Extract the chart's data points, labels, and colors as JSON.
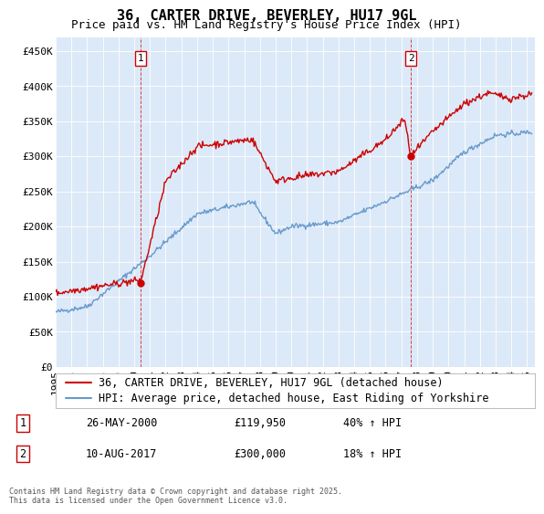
{
  "title": "36, CARTER DRIVE, BEVERLEY, HU17 9GL",
  "subtitle": "Price paid vs. HM Land Registry's House Price Index (HPI)",
  "ylabel_ticks": [
    "£0",
    "£50K",
    "£100K",
    "£150K",
    "£200K",
    "£250K",
    "£300K",
    "£350K",
    "£400K",
    "£450K"
  ],
  "ytick_values": [
    0,
    50000,
    100000,
    150000,
    200000,
    250000,
    300000,
    350000,
    400000,
    450000
  ],
  "ylim": [
    0,
    470000
  ],
  "xlim_start": 1995.0,
  "xlim_end": 2025.5,
  "xtick_years": [
    1995,
    1996,
    1997,
    1998,
    1999,
    2000,
    2001,
    2002,
    2003,
    2004,
    2005,
    2006,
    2007,
    2008,
    2009,
    2010,
    2011,
    2012,
    2013,
    2014,
    2015,
    2016,
    2017,
    2018,
    2019,
    2020,
    2021,
    2022,
    2023,
    2024,
    2025
  ],
  "background_color": "#dce9f8",
  "fig_bg_color": "#ffffff",
  "red_line_color": "#cc0000",
  "blue_line_color": "#6699cc",
  "marker1_x": 2000.4,
  "marker1_y": 119950,
  "marker1_label": "1",
  "marker2_x": 2017.6,
  "marker2_y": 300000,
  "marker2_label": "2",
  "annotation1_date": "26-MAY-2000",
  "annotation1_price": "£119,950",
  "annotation1_hpi": "40% ↑ HPI",
  "annotation2_date": "10-AUG-2017",
  "annotation2_price": "£300,000",
  "annotation2_hpi": "18% ↑ HPI",
  "legend_line1": "36, CARTER DRIVE, BEVERLEY, HU17 9GL (detached house)",
  "legend_line2": "HPI: Average price, detached house, East Riding of Yorkshire",
  "footnote": "Contains HM Land Registry data © Crown copyright and database right 2025.\nThis data is licensed under the Open Government Licence v3.0.",
  "title_fontsize": 11,
  "subtitle_fontsize": 9,
  "tick_fontsize": 8,
  "legend_fontsize": 8.5
}
